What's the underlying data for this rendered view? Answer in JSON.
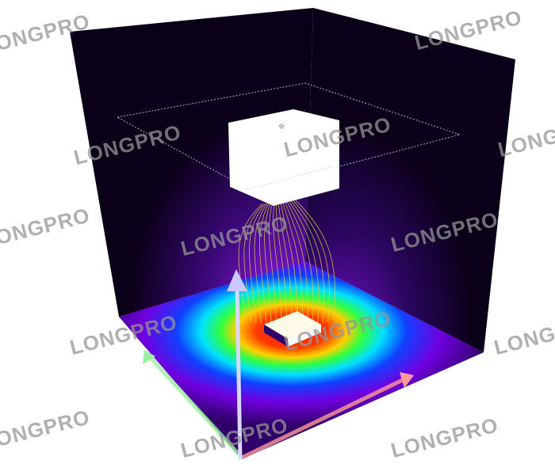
{
  "scene": {
    "wall_color": "#0a0018",
    "glow_color": "#7a10d0",
    "heatmap_colors": [
      "#ffffff",
      "#ff2a00",
      "#ffd000",
      "#30ff40",
      "#00e0ff",
      "#1040ff",
      "#7000e0",
      "#30006a"
    ],
    "source_block_color": "#ffffff",
    "field_line_color": "#e0d040",
    "axes": {
      "x_color": "#ff9a9a",
      "y_color": "#9aefa0",
      "z_color": "#c8c8ff"
    }
  },
  "watermark": {
    "text": "LONGPRO"
  }
}
